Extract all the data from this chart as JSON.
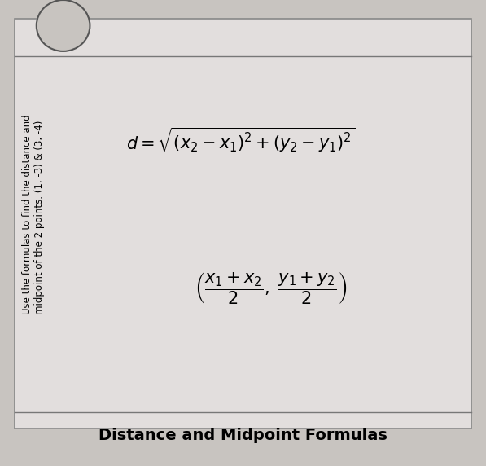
{
  "title": "Distance and Midpoint Formulas",
  "instruction_line1": "Use the formulas to find the distance and",
  "instruction_line2": "midpoint of the 2 points. (1, -3) & (3, -4)",
  "bg_color": "#c8c4c0",
  "paper_color": "#e2dedd",
  "title_fontsize": 14,
  "formula_fontsize": 15,
  "instruction_fontsize": 8.5
}
